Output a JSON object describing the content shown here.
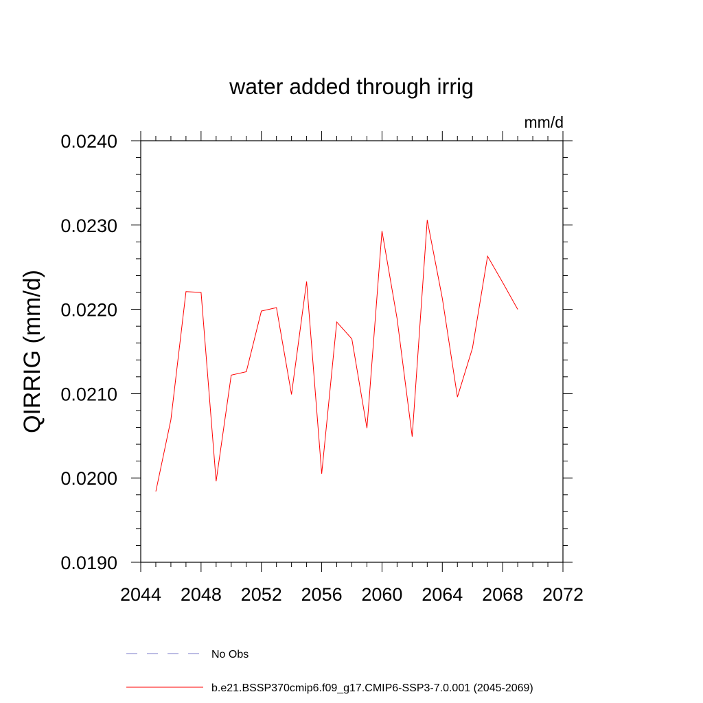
{
  "chart_data": {
    "type": "line",
    "title": "water added through irrig",
    "units_label": "mm/d",
    "ylabel": "QIRRIG  (mm/d)",
    "xlabel": "",
    "xlim": [
      2044,
      2072
    ],
    "ylim": [
      0.019,
      0.024
    ],
    "x_ticks": [
      "2044",
      "2048",
      "2052",
      "2056",
      "2060",
      "2064",
      "2068",
      "2072"
    ],
    "y_ticks": [
      "0.0190",
      "0.0200",
      "0.0210",
      "0.0220",
      "0.0230",
      "0.0240"
    ],
    "grid": false,
    "legend_position": "bottom",
    "series": [
      {
        "name": "b.e21.BSSP370cmip6.f09_g17.CMIP6-SSP3-7.0.001 (2045-2069)",
        "color": "#ff0000",
        "style": "solid",
        "x": [
          2045,
          2046,
          2047,
          2048,
          2049,
          2050,
          2051,
          2052,
          2053,
          2054,
          2055,
          2056,
          2057,
          2058,
          2059,
          2060,
          2061,
          2062,
          2063,
          2064,
          2065,
          2066,
          2067,
          2068,
          2069
        ],
        "y": [
          0.01984,
          0.02069,
          0.02221,
          0.0222,
          0.01996,
          0.02122,
          0.02126,
          0.02198,
          0.02202,
          0.02099,
          0.02233,
          0.02005,
          0.02185,
          0.02165,
          0.02059,
          0.02293,
          0.02189,
          0.02049,
          0.02306,
          0.02213,
          0.02096,
          0.02154,
          0.02263,
          0.02232,
          0.022
        ]
      }
    ],
    "legend": [
      {
        "label": "No Obs",
        "color": "#7b7bc8",
        "style": "dashed"
      },
      {
        "label": "b.e21.BSSP370cmip6.f09_g17.CMIP6-SSP3-7.0.001 (2045-2069)",
        "color": "#ff0000",
        "style": "solid"
      }
    ]
  }
}
